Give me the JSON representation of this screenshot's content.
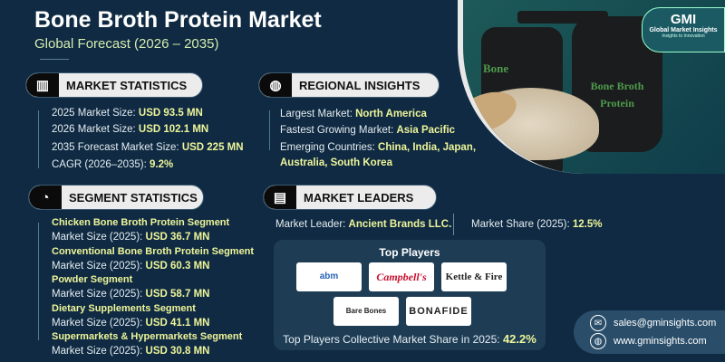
{
  "header": {
    "title": "Bone Broth Protein Market",
    "subtitle": "Global Forecast (2026 – 2035)"
  },
  "market_statistics": {
    "heading": "MARKET STATISTICS",
    "icon": "chart-globe-icon",
    "items": [
      {
        "label": "2025 Market Size: ",
        "value": "USD 93.5 MN"
      },
      {
        "label": "2026 Market Size: ",
        "value": "USD 102.1 MN"
      },
      {
        "label": "2035 Forecast Market Size: ",
        "value": "USD 225 MN"
      },
      {
        "label": "CAGR (2026–2035): ",
        "value": "9.2%"
      }
    ]
  },
  "regional_insights": {
    "heading": "REGIONAL INSIGHTS",
    "icon": "globe-icon",
    "items": [
      {
        "label": "Largest Market: ",
        "value": "North America"
      },
      {
        "label": "Fastest Growing Market: ",
        "value": "Asia Pacific"
      },
      {
        "label": "Emerging Countries: ",
        "value": "China, India, Japan,",
        "value2": "Australia, South Korea"
      }
    ]
  },
  "segment_statistics": {
    "heading": "SEGMENT STATISTICS",
    "icon": "pie-chart-icon",
    "items": [
      {
        "name": "Chicken Bone Broth Protein Segment",
        "label": "Market Size (2025): ",
        "value": "USD 36.7 MN"
      },
      {
        "name": "Conventional Bone Broth Protein Segment",
        "label": "Market Size (2025): ",
        "value": "USD 60.3 MN"
      },
      {
        "name": "Powder Segment",
        "label": "Market Size (2025): ",
        "value": "USD 58.7 MN"
      },
      {
        "name": "Dietary Supplements Segment",
        "label": "Market Size (2025): ",
        "value": "USD 41.1 MN"
      },
      {
        "name": "Supermarkets & Hypermarkets Segment",
        "label": "Market Size (2025): ",
        "value": "USD 30.8 MN"
      }
    ]
  },
  "market_leaders": {
    "heading": "MARKET LEADERS",
    "icon": "leaderboard-icon",
    "leader_label": "Market Leader: ",
    "leader": "Ancient Brands LLC.",
    "share_label": "Market Share (2025): ",
    "share": "12.5%",
    "top_players_title": "Top Players",
    "players": [
      "abm",
      "Campbell's",
      "Kettle & Fire",
      "Bare Bones",
      "Bonafide"
    ],
    "collective_label": "Top Players Collective Market Share in 2025: ",
    "collective": "42.2%"
  },
  "hero": {
    "jar_label_1": "Bone Broth",
    "jar_label_2": "Protein",
    "jar_back_label": "Bone"
  },
  "brand": {
    "logo": "GMI",
    "name": "Global Market Insights",
    "tagline": "Insights to Innovation"
  },
  "contact": {
    "email": "sales@gminsights.com",
    "website": "www.gminsights.com"
  },
  "colors": {
    "background": "#0f2a42",
    "highlight": "#eef59a",
    "subtitle": "#d5ecb0"
  }
}
